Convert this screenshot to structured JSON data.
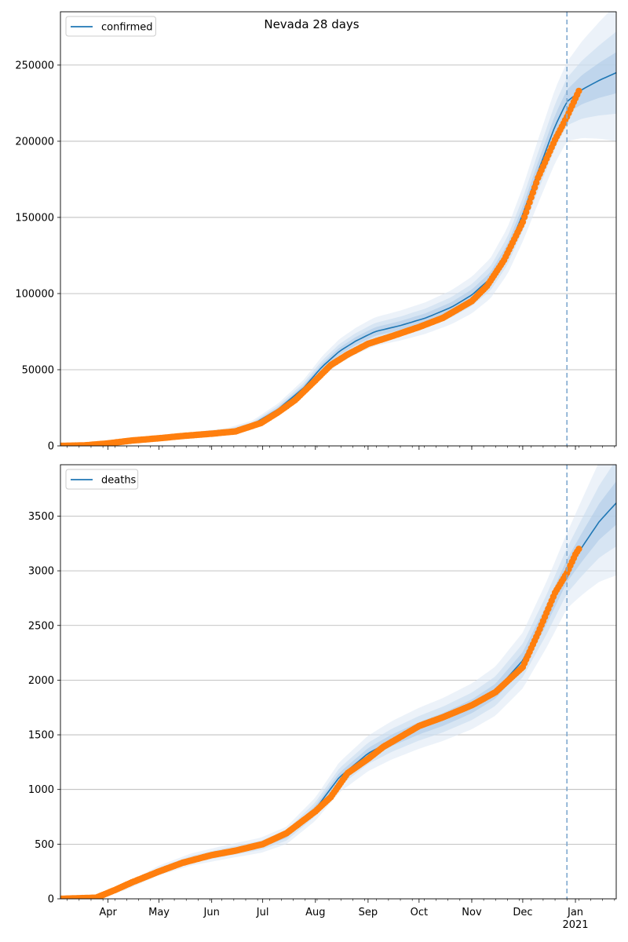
{
  "chart_data": [
    {
      "type": "line",
      "title": "Nevada 28 days",
      "legend": {
        "label": "confirmed",
        "placement": "top-left"
      },
      "grid": "y",
      "ylim": [
        0,
        285000
      ],
      "yticks": [
        0,
        50000,
        100000,
        150000,
        200000,
        250000
      ],
      "ytick_labels": [
        "0",
        "50000",
        "100000",
        "150000",
        "200000",
        "250000"
      ],
      "xlim": [
        "2020-03-04",
        "2021-01-25"
      ],
      "forecast_start": "2020-12-27",
      "series": [
        {
          "name": "confirmed",
          "kind": "model-fit",
          "color": "#1f77b4",
          "x": [
            "2020-03-04",
            "2020-03-20",
            "2020-04-05",
            "2020-05-01",
            "2020-05-20",
            "2020-06-10",
            "2020-06-25",
            "2020-07-10",
            "2020-07-25",
            "2020-08-05",
            "2020-08-15",
            "2020-08-25",
            "2020-09-05",
            "2020-09-20",
            "2020-10-05",
            "2020-10-20",
            "2020-11-01",
            "2020-11-12",
            "2020-11-22",
            "2020-12-01",
            "2020-12-10",
            "2020-12-20",
            "2020-12-27",
            "2021-01-05",
            "2021-01-15",
            "2021-01-25"
          ],
          "y": [
            0,
            300,
            1800,
            5000,
            7000,
            9500,
            14000,
            24000,
            38000,
            52000,
            62000,
            69000,
            75000,
            79000,
            84000,
            91000,
            99000,
            110000,
            128000,
            152000,
            180000,
            210000,
            226000,
            234000,
            240000,
            245000
          ]
        },
        {
          "name": "confirmed (observed)",
          "kind": "observed",
          "color": "#ff7f0e",
          "x": [
            "2020-03-04",
            "2020-03-18",
            "2020-03-31",
            "2020-04-15",
            "2020-05-01",
            "2020-05-15",
            "2020-06-01",
            "2020-06-15",
            "2020-06-30",
            "2020-07-10",
            "2020-07-20",
            "2020-08-01",
            "2020-08-10",
            "2020-08-20",
            "2020-09-01",
            "2020-09-15",
            "2020-10-01",
            "2020-10-15",
            "2020-11-01",
            "2020-11-10",
            "2020-11-20",
            "2020-12-01",
            "2020-12-10",
            "2020-12-20",
            "2020-12-27",
            "2021-01-03"
          ],
          "y": [
            0,
            300,
            1500,
            3500,
            5000,
            6500,
            8000,
            9500,
            15000,
            22000,
            30000,
            43000,
            53000,
            60000,
            67000,
            72000,
            78000,
            84000,
            95000,
            105000,
            122000,
            147000,
            176000,
            201000,
            216000,
            233000
          ]
        }
      ],
      "band_levels": [
        "outer",
        "middle",
        "inner"
      ],
      "band_fills": [
        "#dce8f4",
        "#c6dbef",
        "#abc9e6"
      ]
    },
    {
      "type": "line",
      "title": "",
      "legend": {
        "label": "deaths",
        "placement": "top-left"
      },
      "grid": "y",
      "ylim": [
        0,
        3970
      ],
      "yticks": [
        0,
        500,
        1000,
        1500,
        2000,
        2500,
        3000,
        3500
      ],
      "ytick_labels": [
        "0",
        "500",
        "1000",
        "1500",
        "2000",
        "2500",
        "3000",
        "3500"
      ],
      "xlim": [
        "2020-03-04",
        "2021-01-25"
      ],
      "forecast_start": "2020-12-27",
      "xtick_labels": [
        {
          "date": "2020-04-01",
          "label": "Apr"
        },
        {
          "date": "2020-05-01",
          "label": "May"
        },
        {
          "date": "2020-06-01",
          "label": "Jun"
        },
        {
          "date": "2020-07-01",
          "label": "Jul"
        },
        {
          "date": "2020-08-01",
          "label": "Aug"
        },
        {
          "date": "2020-09-01",
          "label": "Sep"
        },
        {
          "date": "2020-10-01",
          "label": "Oct"
        },
        {
          "date": "2020-11-01",
          "label": "Nov"
        },
        {
          "date": "2020-12-01",
          "label": "Dec"
        },
        {
          "date": "2021-01-01",
          "label": "Jan"
        }
      ],
      "x_year_label": {
        "date": "2021-01-01",
        "label": "2021"
      },
      "series": [
        {
          "name": "deaths",
          "kind": "model-fit",
          "color": "#1f77b4",
          "x": [
            "2020-03-04",
            "2020-03-25",
            "2020-04-10",
            "2020-05-01",
            "2020-05-20",
            "2020-06-10",
            "2020-06-30",
            "2020-07-15",
            "2020-08-01",
            "2020-08-15",
            "2020-09-01",
            "2020-09-15",
            "2020-10-01",
            "2020-10-15",
            "2020-11-01",
            "2020-11-15",
            "2020-12-01",
            "2020-12-15",
            "2020-12-27",
            "2021-01-05",
            "2021-01-15",
            "2021-01-25"
          ],
          "y": [
            0,
            10,
            100,
            260,
            360,
            430,
            490,
            580,
            820,
            1110,
            1330,
            1450,
            1560,
            1640,
            1760,
            1900,
            2180,
            2600,
            3000,
            3220,
            3450,
            3620
          ]
        },
        {
          "name": "deaths (observed)",
          "kind": "observed",
          "color": "#ff7f0e",
          "x": [
            "2020-03-04",
            "2020-03-25",
            "2020-04-05",
            "2020-04-15",
            "2020-05-01",
            "2020-05-15",
            "2020-06-01",
            "2020-06-15",
            "2020-07-01",
            "2020-07-15",
            "2020-08-01",
            "2020-08-10",
            "2020-08-20",
            "2020-09-01",
            "2020-09-10",
            "2020-09-20",
            "2020-10-01",
            "2020-10-15",
            "2020-11-01",
            "2020-11-15",
            "2020-12-01",
            "2020-12-10",
            "2020-12-20",
            "2020-12-27",
            "2021-01-01",
            "2021-01-03"
          ],
          "y": [
            0,
            10,
            80,
            150,
            250,
            330,
            400,
            440,
            500,
            600,
            800,
            930,
            1150,
            1280,
            1390,
            1480,
            1580,
            1660,
            1770,
            1890,
            2120,
            2430,
            2800,
            2980,
            3150,
            3200
          ]
        }
      ],
      "band_levels": [
        "outer",
        "middle",
        "inner"
      ],
      "band_fills": [
        "#dce8f4",
        "#c6dbef",
        "#abc9e6"
      ]
    }
  ]
}
